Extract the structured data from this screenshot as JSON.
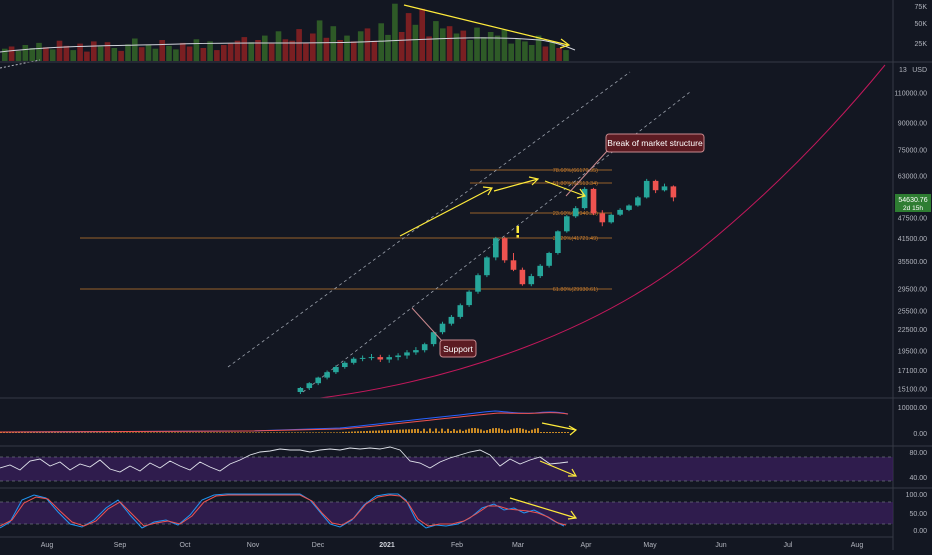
{
  "colors": {
    "background": "#131722",
    "grid": "#1e2230",
    "separator": "#363a45",
    "bull": "#26a69a",
    "bear": "#ef5350",
    "vol_bull": "#2e5a27",
    "vol_bear": "#7a1f22",
    "fib": "#c47a2c",
    "arrow": "#ffeb3b",
    "channel": "#9aa0ab",
    "curve": "#c2185b",
    "callout_bg": "#5c1b22",
    "callout_border": "#c9898e",
    "price_tag": "#2e7d32",
    "rsi_band": "#3a1f5c",
    "macd_line": "#2962ff",
    "signal_line": "#ef5350",
    "stoch_k": "#2196f3",
    "stoch_d": "#ef5350"
  },
  "price_axis": {
    "currency": "USD",
    "top_tick": "13",
    "ticks": [
      "110000.00",
      "90000.00",
      "75000.00",
      "63000.00",
      "47500.00",
      "41500.00",
      "35500.00",
      "29500.00",
      "25500.00",
      "22500.00",
      "19500.00",
      "17100.00",
      "15100.00"
    ],
    "current_price": "54630.76",
    "countdown": "2d 15h"
  },
  "volume_axis": {
    "ticks": [
      "75K",
      "50K",
      "25K"
    ]
  },
  "macd_axis": {
    "ticks": [
      "10000.00",
      "0.00"
    ]
  },
  "rsi_axis": {
    "ticks": [
      "80.00",
      "40.00"
    ]
  },
  "stoch_axis": {
    "ticks": [
      "100.00",
      "50.00",
      "0.00"
    ]
  },
  "time_axis": {
    "labels": [
      "Aug",
      "Sep",
      "Oct",
      "Nov",
      "Dec",
      "2021",
      "Feb",
      "Mar",
      "Apr",
      "May",
      "Jun",
      "Jul",
      "Aug"
    ]
  },
  "fib_levels": [
    {
      "text": "78.60%(66170.95)"
    },
    {
      "text": "61.80%(61513.34)"
    },
    {
      "text": "23.60%(49940.35)"
    },
    {
      "text": "38.20%(41721.49)"
    },
    {
      "text": "61.80%(29930.61)"
    }
  ],
  "callouts": {
    "break": "Break of market structure",
    "support": "Support"
  },
  "chart_data": {
    "type": "candlestick",
    "title": "",
    "y_scale": "log",
    "x_range": [
      "2020-07-20",
      "2021-08-31"
    ],
    "ylim": [
      14000,
      135000
    ],
    "candles": [
      {
        "date": "2020-11-23",
        "open": 14800,
        "high": 15300,
        "low": 14600,
        "close": 15200
      },
      {
        "date": "2020-11-27",
        "open": 15200,
        "high": 15800,
        "low": 15000,
        "close": 15700
      },
      {
        "date": "2020-12-01",
        "open": 15700,
        "high": 16400,
        "low": 15500,
        "close": 16300
      },
      {
        "date": "2020-12-05",
        "open": 16300,
        "high": 17100,
        "low": 16100,
        "close": 16900
      },
      {
        "date": "2020-12-09",
        "open": 16900,
        "high": 17700,
        "low": 16700,
        "close": 17500
      },
      {
        "date": "2020-12-13",
        "open": 17500,
        "high": 18200,
        "low": 17300,
        "close": 18000
      },
      {
        "date": "2020-12-17",
        "open": 18000,
        "high": 18700,
        "low": 17800,
        "close": 18500
      },
      {
        "date": "2020-12-21",
        "open": 18500,
        "high": 18900,
        "low": 18200,
        "close": 18600
      },
      {
        "date": "2020-12-25",
        "open": 18600,
        "high": 19100,
        "low": 18300,
        "close": 18700
      },
      {
        "date": "2020-12-29",
        "open": 18700,
        "high": 19000,
        "low": 18100,
        "close": 18400
      },
      {
        "date": "2021-01-02",
        "open": 18400,
        "high": 19000,
        "low": 18000,
        "close": 18700
      },
      {
        "date": "2021-01-06",
        "open": 18700,
        "high": 19200,
        "low": 18300,
        "close": 18900
      },
      {
        "date": "2021-01-10",
        "open": 18900,
        "high": 19600,
        "low": 18500,
        "close": 19300
      },
      {
        "date": "2021-01-14",
        "open": 19300,
        "high": 20000,
        "low": 19000,
        "close": 19600
      },
      {
        "date": "2021-01-18",
        "open": 19600,
        "high": 20600,
        "low": 19300,
        "close": 20400
      },
      {
        "date": "2021-01-22",
        "open": 20400,
        "high": 22300,
        "low": 20100,
        "close": 22100
      },
      {
        "date": "2021-01-26",
        "open": 22100,
        "high": 23700,
        "low": 21800,
        "close": 23400
      },
      {
        "date": "2021-01-30",
        "open": 23400,
        "high": 24800,
        "low": 23100,
        "close": 24500
      },
      {
        "date": "2021-02-03",
        "open": 24500,
        "high": 26800,
        "low": 24200,
        "close": 26500
      },
      {
        "date": "2021-02-07",
        "open": 26500,
        "high": 29300,
        "low": 26200,
        "close": 29000
      },
      {
        "date": "2021-02-11",
        "open": 29000,
        "high": 32800,
        "low": 28600,
        "close": 32400
      },
      {
        "date": "2021-02-15",
        "open": 32400,
        "high": 36800,
        "low": 32000,
        "close": 36500
      },
      {
        "date": "2021-02-19",
        "open": 36500,
        "high": 41900,
        "low": 35800,
        "close": 41500
      },
      {
        "date": "2021-02-23",
        "open": 41500,
        "high": 41900,
        "low": 35200,
        "close": 35800
      },
      {
        "date": "2021-02-27",
        "open": 35800,
        "high": 37600,
        "low": 33300,
        "close": 33600
      },
      {
        "date": "2021-03-03",
        "open": 33600,
        "high": 34100,
        "low": 30200,
        "close": 30500
      },
      {
        "date": "2021-03-07",
        "open": 30500,
        "high": 32700,
        "low": 30100,
        "close": 32200
      },
      {
        "date": "2021-03-11",
        "open": 32200,
        "high": 34900,
        "low": 31800,
        "close": 34500
      },
      {
        "date": "2021-03-15",
        "open": 34500,
        "high": 37900,
        "low": 34100,
        "close": 37600
      },
      {
        "date": "2021-03-19",
        "open": 37600,
        "high": 43800,
        "low": 37200,
        "close": 43500
      },
      {
        "date": "2021-03-23",
        "open": 43500,
        "high": 48500,
        "low": 43100,
        "close": 48100
      },
      {
        "date": "2021-03-27",
        "open": 48100,
        "high": 51500,
        "low": 47600,
        "close": 50800
      },
      {
        "date": "2021-03-31",
        "open": 50800,
        "high": 58500,
        "low": 50300,
        "close": 57800
      },
      {
        "date": "2021-04-04",
        "open": 57800,
        "high": 58200,
        "low": 48500,
        "close": 49000
      },
      {
        "date": "2021-04-08",
        "open": 49000,
        "high": 50100,
        "low": 45000,
        "close": 46200
      },
      {
        "date": "2021-04-12",
        "open": 46200,
        "high": 48900,
        "low": 45800,
        "close": 48600
      },
      {
        "date": "2021-04-16",
        "open": 48600,
        "high": 50800,
        "low": 48200,
        "close": 50200
      },
      {
        "date": "2021-04-20",
        "open": 50200,
        "high": 52100,
        "low": 49800,
        "close": 51700
      },
      {
        "date": "2021-04-24",
        "open": 51700,
        "high": 55100,
        "low": 51300,
        "close": 54600
      },
      {
        "date": "2021-04-28",
        "open": 54600,
        "high": 61800,
        "low": 54200,
        "close": 61000
      },
      {
        "date": "2021-05-02",
        "open": 61000,
        "high": 61500,
        "low": 56200,
        "close": 57300
      },
      {
        "date": "2021-05-06",
        "open": 57300,
        "high": 59900,
        "low": 56800,
        "close": 58800
      },
      {
        "date": "2021-05-10",
        "open": 58800,
        "high": 59200,
        "low": 53200,
        "close": 54600
      }
    ],
    "volume": [
      17,
      20,
      14,
      22,
      18,
      25,
      19,
      16,
      28,
      21,
      15,
      24,
      13,
      27,
      20,
      26,
      18,
      14,
      23,
      31,
      19,
      22,
      17,
      29,
      21,
      16,
      25,
      20,
      30,
      18,
      27,
      15,
      22,
      24,
      28,
      33,
      26,
      29,
      35,
      24,
      41,
      30,
      28,
      44,
      25,
      38,
      56,
      32,
      48,
      29,
      35,
      27,
      41,
      45,
      28,
      52,
      36,
      79,
      40,
      66,
      50,
      72,
      34,
      55,
      45,
      48,
      38,
      42,
      29,
      46,
      33,
      40,
      35,
      43,
      24,
      31,
      27,
      22,
      35,
      20,
      26,
      18,
      15
    ]
  }
}
